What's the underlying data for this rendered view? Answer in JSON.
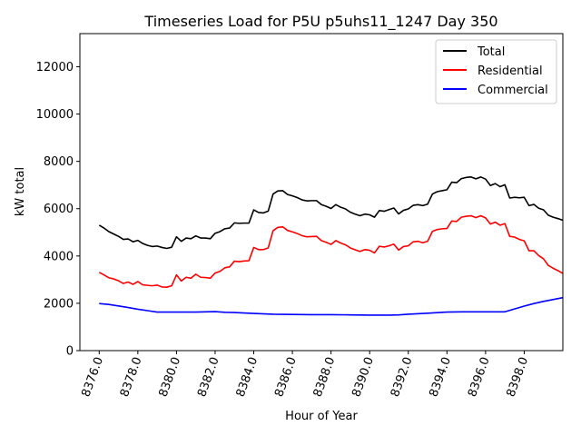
{
  "chart_data": {
    "type": "line",
    "title": "Timeseries Load for P5U p5uhs11_1247  Day 350",
    "xlabel": "Hour of Year",
    "ylabel": "kW total",
    "xlim": [
      8375.0,
      8400.0
    ],
    "ylim": [
      0,
      13400
    ],
    "x_ticks": [
      8376,
      8378,
      8380,
      8382,
      8384,
      8386,
      8388,
      8390,
      8392,
      8394,
      8396,
      8398
    ],
    "x_tick_labels": [
      "8376.0",
      "8378.0",
      "8380.0",
      "8382.0",
      "8384.0",
      "8386.0",
      "8388.0",
      "8390.0",
      "8392.0",
      "8394.0",
      "8396.0",
      "8398.0"
    ],
    "y_ticks": [
      0,
      2000,
      4000,
      6000,
      8000,
      10000,
      12000
    ],
    "y_tick_labels": [
      "0",
      "2000",
      "4000",
      "6000",
      "8000",
      "10000",
      "12000"
    ],
    "legend_position": "top-right",
    "series": [
      {
        "name": "Total",
        "color": "#000000",
        "points": [
          [
            8376.0,
            5300
          ],
          [
            8376.25,
            5180
          ],
          [
            8376.5,
            5030
          ],
          [
            8376.75,
            4930
          ],
          [
            8377.0,
            4830
          ],
          [
            8377.25,
            4700
          ],
          [
            8377.5,
            4720
          ],
          [
            8377.75,
            4600
          ],
          [
            8378.0,
            4660
          ],
          [
            8378.25,
            4530
          ],
          [
            8378.5,
            4450
          ],
          [
            8378.75,
            4400
          ],
          [
            8379.0,
            4420
          ],
          [
            8379.25,
            4360
          ],
          [
            8379.5,
            4320
          ],
          [
            8379.75,
            4370
          ],
          [
            8380.0,
            4810
          ],
          [
            8380.25,
            4620
          ],
          [
            8380.5,
            4760
          ],
          [
            8380.75,
            4730
          ],
          [
            8381.0,
            4850
          ],
          [
            8381.25,
            4760
          ],
          [
            8381.5,
            4760
          ],
          [
            8381.75,
            4730
          ],
          [
            8382.0,
            4960
          ],
          [
            8382.25,
            5030
          ],
          [
            8382.5,
            5150
          ],
          [
            8382.75,
            5180
          ],
          [
            8383.0,
            5400
          ],
          [
            8383.25,
            5380
          ],
          [
            8383.5,
            5390
          ],
          [
            8383.75,
            5390
          ],
          [
            8384.0,
            5950
          ],
          [
            8384.25,
            5840
          ],
          [
            8384.5,
            5820
          ],
          [
            8384.75,
            5900
          ],
          [
            8385.0,
            6620
          ],
          [
            8385.25,
            6750
          ],
          [
            8385.5,
            6760
          ],
          [
            8385.75,
            6600
          ],
          [
            8386.0,
            6540
          ],
          [
            8386.25,
            6470
          ],
          [
            8386.5,
            6370
          ],
          [
            8386.75,
            6330
          ],
          [
            8387.0,
            6340
          ],
          [
            8387.25,
            6340
          ],
          [
            8387.5,
            6170
          ],
          [
            8387.75,
            6100
          ],
          [
            8388.0,
            6010
          ],
          [
            8388.25,
            6170
          ],
          [
            8388.5,
            6060
          ],
          [
            8388.75,
            5990
          ],
          [
            8389.0,
            5850
          ],
          [
            8389.25,
            5770
          ],
          [
            8389.5,
            5700
          ],
          [
            8389.75,
            5770
          ],
          [
            8390.0,
            5740
          ],
          [
            8390.25,
            5640
          ],
          [
            8390.5,
            5920
          ],
          [
            8390.75,
            5890
          ],
          [
            8391.0,
            5960
          ],
          [
            8391.25,
            6030
          ],
          [
            8391.5,
            5780
          ],
          [
            8391.75,
            5930
          ],
          [
            8392.0,
            5990
          ],
          [
            8392.25,
            6140
          ],
          [
            8392.5,
            6170
          ],
          [
            8392.75,
            6130
          ],
          [
            8393.0,
            6190
          ],
          [
            8393.25,
            6620
          ],
          [
            8393.5,
            6720
          ],
          [
            8393.75,
            6760
          ],
          [
            8394.0,
            6800
          ],
          [
            8394.25,
            7120
          ],
          [
            8394.5,
            7100
          ],
          [
            8394.75,
            7270
          ],
          [
            8395.0,
            7320
          ],
          [
            8395.25,
            7340
          ],
          [
            8395.5,
            7260
          ],
          [
            8395.75,
            7340
          ],
          [
            8396.0,
            7250
          ],
          [
            8396.25,
            6980
          ],
          [
            8396.5,
            7060
          ],
          [
            8396.75,
            6930
          ],
          [
            8397.0,
            7010
          ],
          [
            8397.25,
            6450
          ],
          [
            8397.5,
            6480
          ],
          [
            8397.75,
            6460
          ],
          [
            8398.0,
            6480
          ],
          [
            8398.25,
            6130
          ],
          [
            8398.5,
            6180
          ],
          [
            8398.75,
            6020
          ],
          [
            8399.0,
            5950
          ],
          [
            8399.25,
            5720
          ],
          [
            8399.5,
            5640
          ],
          [
            8399.75,
            5580
          ],
          [
            8400.0,
            5510
          ]
        ]
      },
      {
        "name": "Residential",
        "color": "#ff0000",
        "points": [
          [
            8376.0,
            3310
          ],
          [
            8376.25,
            3200
          ],
          [
            8376.5,
            3080
          ],
          [
            8376.75,
            3030
          ],
          [
            8377.0,
            2950
          ],
          [
            8377.25,
            2840
          ],
          [
            8377.5,
            2900
          ],
          [
            8377.75,
            2800
          ],
          [
            8378.0,
            2920
          ],
          [
            8378.25,
            2780
          ],
          [
            8378.5,
            2760
          ],
          [
            8378.75,
            2740
          ],
          [
            8379.0,
            2770
          ],
          [
            8379.25,
            2690
          ],
          [
            8379.5,
            2680
          ],
          [
            8379.75,
            2740
          ],
          [
            8380.0,
            3200
          ],
          [
            8380.25,
            2940
          ],
          [
            8380.5,
            3100
          ],
          [
            8380.75,
            3060
          ],
          [
            8381.0,
            3230
          ],
          [
            8381.25,
            3100
          ],
          [
            8381.5,
            3090
          ],
          [
            8381.75,
            3060
          ],
          [
            8382.0,
            3280
          ],
          [
            8382.25,
            3350
          ],
          [
            8382.5,
            3500
          ],
          [
            8382.75,
            3540
          ],
          [
            8383.0,
            3780
          ],
          [
            8383.25,
            3760
          ],
          [
            8383.5,
            3790
          ],
          [
            8383.75,
            3800
          ],
          [
            8384.0,
            4360
          ],
          [
            8384.25,
            4270
          ],
          [
            8384.5,
            4270
          ],
          [
            8384.75,
            4340
          ],
          [
            8385.0,
            5070
          ],
          [
            8385.25,
            5210
          ],
          [
            8385.5,
            5230
          ],
          [
            8385.75,
            5080
          ],
          [
            8386.0,
            5020
          ],
          [
            8386.25,
            4950
          ],
          [
            8386.5,
            4860
          ],
          [
            8386.75,
            4810
          ],
          [
            8387.0,
            4820
          ],
          [
            8387.25,
            4830
          ],
          [
            8387.5,
            4650
          ],
          [
            8387.75,
            4580
          ],
          [
            8388.0,
            4490
          ],
          [
            8388.25,
            4650
          ],
          [
            8388.5,
            4550
          ],
          [
            8388.75,
            4470
          ],
          [
            8389.0,
            4340
          ],
          [
            8389.25,
            4260
          ],
          [
            8389.5,
            4190
          ],
          [
            8389.75,
            4270
          ],
          [
            8390.0,
            4240
          ],
          [
            8390.25,
            4130
          ],
          [
            8390.5,
            4410
          ],
          [
            8390.75,
            4380
          ],
          [
            8391.0,
            4430
          ],
          [
            8391.25,
            4500
          ],
          [
            8391.5,
            4250
          ],
          [
            8391.75,
            4400
          ],
          [
            8392.0,
            4430
          ],
          [
            8392.25,
            4600
          ],
          [
            8392.5,
            4620
          ],
          [
            8392.75,
            4560
          ],
          [
            8393.0,
            4620
          ],
          [
            8393.25,
            5040
          ],
          [
            8393.5,
            5120
          ],
          [
            8393.75,
            5150
          ],
          [
            8394.0,
            5160
          ],
          [
            8394.25,
            5480
          ],
          [
            8394.5,
            5460
          ],
          [
            8394.75,
            5640
          ],
          [
            8395.0,
            5680
          ],
          [
            8395.25,
            5700
          ],
          [
            8395.5,
            5620
          ],
          [
            8395.75,
            5700
          ],
          [
            8396.0,
            5610
          ],
          [
            8396.25,
            5350
          ],
          [
            8396.5,
            5430
          ],
          [
            8396.75,
            5300
          ],
          [
            8397.0,
            5370
          ],
          [
            8397.25,
            4830
          ],
          [
            8397.5,
            4800
          ],
          [
            8397.75,
            4700
          ],
          [
            8398.0,
            4640
          ],
          [
            8398.25,
            4220
          ],
          [
            8398.5,
            4220
          ],
          [
            8398.75,
            4020
          ],
          [
            8399.0,
            3880
          ],
          [
            8399.25,
            3600
          ],
          [
            8399.5,
            3480
          ],
          [
            8399.75,
            3380
          ],
          [
            8400.0,
            3260
          ]
        ]
      },
      {
        "name": "Commercial",
        "color": "#0000ff",
        "points": [
          [
            8376.0,
            1990
          ],
          [
            8376.5,
            1950
          ],
          [
            8377.0,
            1890
          ],
          [
            8377.5,
            1820
          ],
          [
            8378.0,
            1750
          ],
          [
            8378.5,
            1690
          ],
          [
            8379.0,
            1630
          ],
          [
            8380.0,
            1630
          ],
          [
            8381.0,
            1630
          ],
          [
            8382.0,
            1650
          ],
          [
            8382.5,
            1620
          ],
          [
            8383.0,
            1610
          ],
          [
            8383.5,
            1590
          ],
          [
            8384.0,
            1570
          ],
          [
            8385.0,
            1540
          ],
          [
            8386.0,
            1530
          ],
          [
            8387.0,
            1520
          ],
          [
            8388.0,
            1520
          ],
          [
            8389.0,
            1510
          ],
          [
            8390.0,
            1500
          ],
          [
            8391.0,
            1500
          ],
          [
            8391.5,
            1510
          ],
          [
            8392.0,
            1540
          ],
          [
            8393.0,
            1580
          ],
          [
            8394.0,
            1630
          ],
          [
            8395.0,
            1640
          ],
          [
            8396.0,
            1640
          ],
          [
            8397.0,
            1640
          ],
          [
            8397.5,
            1760
          ],
          [
            8398.0,
            1880
          ],
          [
            8398.5,
            1990
          ],
          [
            8399.0,
            2080
          ],
          [
            8400.0,
            2240
          ]
        ]
      }
    ]
  }
}
